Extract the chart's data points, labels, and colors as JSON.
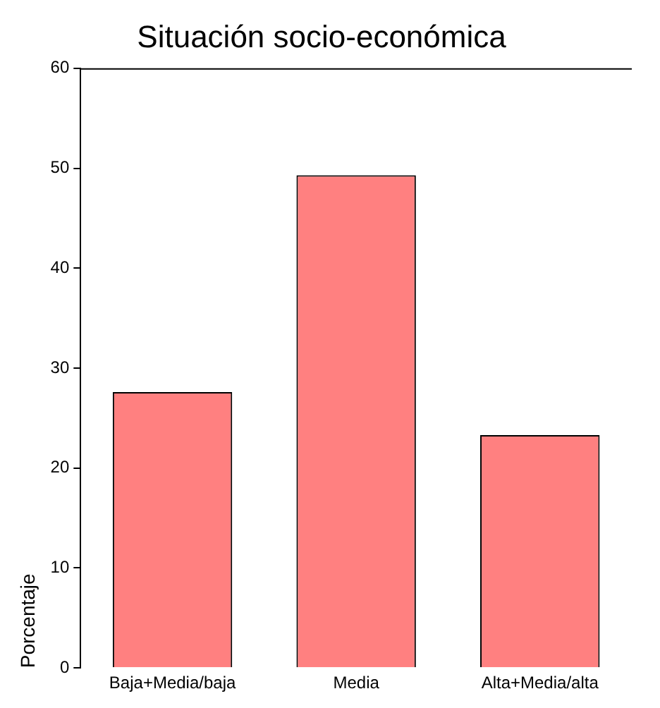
{
  "chart_data": {
    "type": "bar",
    "title": "Situación socio-económica",
    "ylabel": "Porcentaje",
    "categories": [
      "Baja+Media/baja",
      "Media",
      "Alta+Media/alta"
    ],
    "values": [
      27.6,
      49.3,
      23.3
    ],
    "color": "#ff8080",
    "ylim": [
      0,
      60
    ],
    "yticks": [
      0,
      10,
      20,
      30,
      40,
      50,
      60
    ],
    "grid": false,
    "legend": false
  }
}
